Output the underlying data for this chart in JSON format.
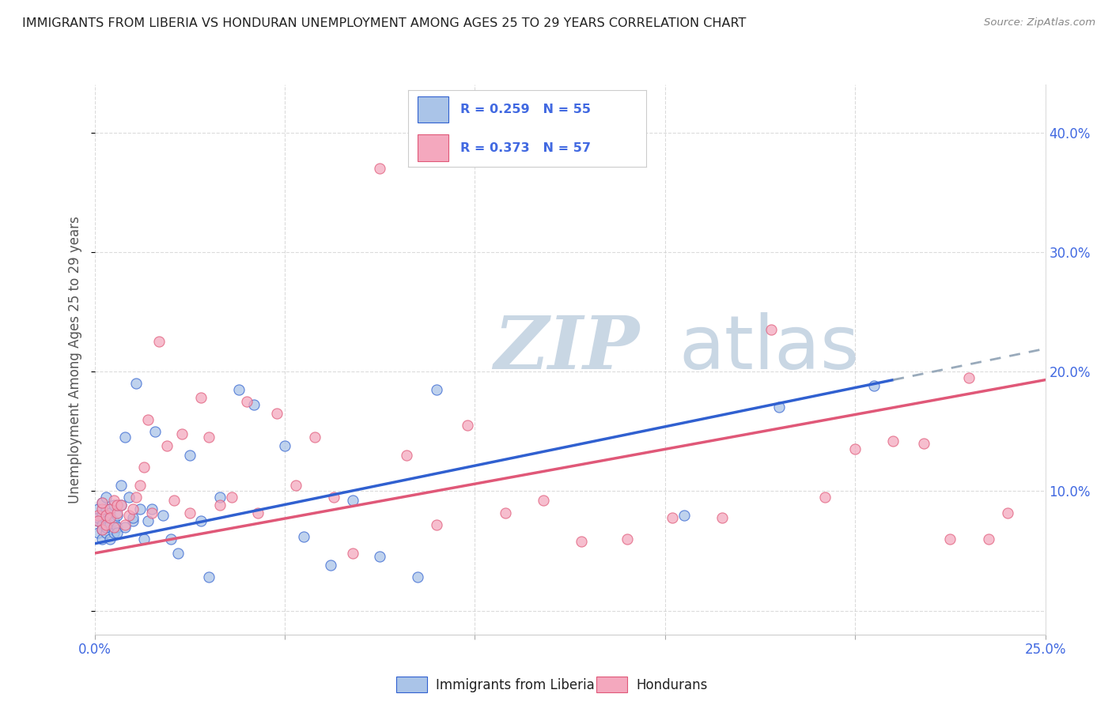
{
  "title": "IMMIGRANTS FROM LIBERIA VS HONDURAN UNEMPLOYMENT AMONG AGES 25 TO 29 YEARS CORRELATION CHART",
  "source": "Source: ZipAtlas.com",
  "ylabel": "Unemployment Among Ages 25 to 29 years",
  "xlim": [
    0.0,
    0.25
  ],
  "ylim": [
    -0.02,
    0.44
  ],
  "xticks": [
    0.0,
    0.05,
    0.1,
    0.15,
    0.2,
    0.25
  ],
  "yticks": [
    0.0,
    0.1,
    0.2,
    0.3,
    0.4
  ],
  "series1_label": "Immigrants from Liberia",
  "series2_label": "Hondurans",
  "R1": 0.259,
  "N1": 55,
  "R2": 0.373,
  "N2": 57,
  "color1": "#aac4e8",
  "color2": "#f4a8be",
  "trendline1_color": "#3060d0",
  "trendline2_color": "#e05878",
  "trendline1_dashed_color": "#99aabb",
  "background_color": "#ffffff",
  "grid_color": "#cccccc",
  "title_color": "#222222",
  "axis_label_color": "#555555",
  "tick_label_color": "#4169e1",
  "watermark_zip": "ZIP",
  "watermark_atlas": "atlas",
  "watermark_color": "#c0d0e0",
  "blue_trend_x0": 0.0,
  "blue_trend_y0": 0.056,
  "blue_trend_x1": 0.21,
  "blue_trend_y1": 0.193,
  "blue_trend_ext_x1": 0.25,
  "pink_trend_x0": 0.0,
  "pink_trend_y0": 0.048,
  "pink_trend_x1": 0.25,
  "pink_trend_y1": 0.193,
  "blue_scatter_x": [
    0.001,
    0.001,
    0.001,
    0.001,
    0.002,
    0.002,
    0.002,
    0.002,
    0.002,
    0.003,
    0.003,
    0.003,
    0.003,
    0.003,
    0.004,
    0.004,
    0.004,
    0.005,
    0.005,
    0.005,
    0.006,
    0.006,
    0.006,
    0.007,
    0.007,
    0.008,
    0.008,
    0.009,
    0.01,
    0.01,
    0.011,
    0.012,
    0.013,
    0.014,
    0.015,
    0.016,
    0.018,
    0.02,
    0.022,
    0.025,
    0.028,
    0.03,
    0.033,
    0.038,
    0.042,
    0.05,
    0.055,
    0.062,
    0.068,
    0.075,
    0.085,
    0.09,
    0.155,
    0.18,
    0.205
  ],
  "blue_scatter_y": [
    0.075,
    0.085,
    0.078,
    0.065,
    0.072,
    0.08,
    0.09,
    0.068,
    0.06,
    0.075,
    0.085,
    0.065,
    0.095,
    0.07,
    0.072,
    0.082,
    0.06,
    0.075,
    0.088,
    0.065,
    0.08,
    0.07,
    0.065,
    0.088,
    0.105,
    0.07,
    0.145,
    0.095,
    0.075,
    0.078,
    0.19,
    0.085,
    0.06,
    0.075,
    0.085,
    0.15,
    0.08,
    0.06,
    0.048,
    0.13,
    0.075,
    0.028,
    0.095,
    0.185,
    0.172,
    0.138,
    0.062,
    0.038,
    0.092,
    0.045,
    0.028,
    0.185,
    0.08,
    0.17,
    0.188
  ],
  "pink_scatter_x": [
    0.001,
    0.001,
    0.002,
    0.002,
    0.002,
    0.003,
    0.003,
    0.004,
    0.004,
    0.005,
    0.005,
    0.006,
    0.006,
    0.007,
    0.008,
    0.009,
    0.01,
    0.011,
    0.012,
    0.013,
    0.014,
    0.015,
    0.017,
    0.019,
    0.021,
    0.023,
    0.025,
    0.028,
    0.03,
    0.033,
    0.036,
    0.04,
    0.043,
    0.048,
    0.053,
    0.058,
    0.063,
    0.068,
    0.075,
    0.082,
    0.09,
    0.098,
    0.108,
    0.118,
    0.128,
    0.14,
    0.152,
    0.165,
    0.178,
    0.192,
    0.2,
    0.21,
    0.218,
    0.225,
    0.23,
    0.235,
    0.24
  ],
  "pink_scatter_y": [
    0.08,
    0.075,
    0.085,
    0.068,
    0.09,
    0.072,
    0.08,
    0.085,
    0.078,
    0.092,
    0.07,
    0.082,
    0.088,
    0.088,
    0.072,
    0.08,
    0.085,
    0.095,
    0.105,
    0.12,
    0.16,
    0.082,
    0.225,
    0.138,
    0.092,
    0.148,
    0.082,
    0.178,
    0.145,
    0.088,
    0.095,
    0.175,
    0.082,
    0.165,
    0.105,
    0.145,
    0.095,
    0.048,
    0.37,
    0.13,
    0.072,
    0.155,
    0.082,
    0.092,
    0.058,
    0.06,
    0.078,
    0.078,
    0.235,
    0.095,
    0.135,
    0.142,
    0.14,
    0.06,
    0.195,
    0.06,
    0.082
  ]
}
